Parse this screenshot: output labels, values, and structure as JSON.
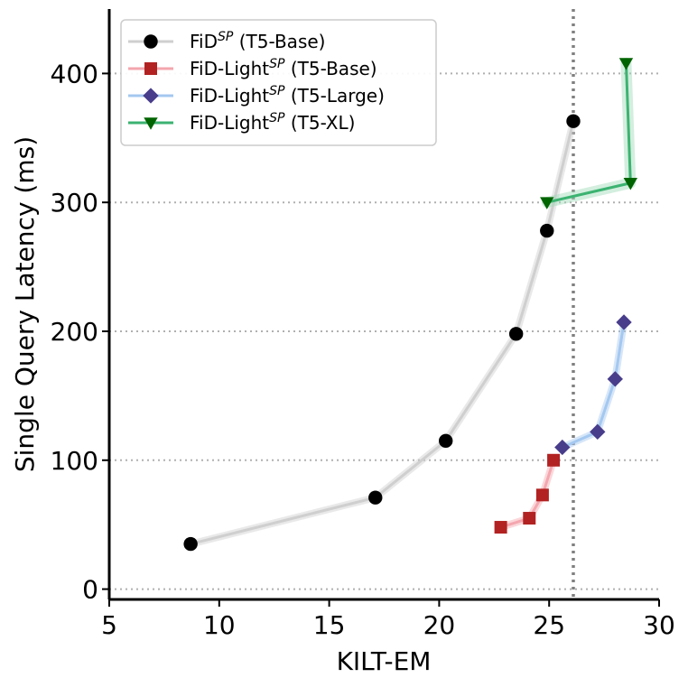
{
  "chart_data": {
    "type": "line",
    "xlabel": "KILT-EM",
    "ylabel": "Single Query Latency (ms)",
    "xlim": [
      5,
      30
    ],
    "ylim": [
      -8,
      450
    ],
    "x_ticks": [
      5,
      10,
      15,
      20,
      25,
      30
    ],
    "y_ticks": [
      0,
      100,
      200,
      300,
      400
    ],
    "x_tick_labels": [
      "5",
      "10",
      "15",
      "20",
      "25",
      "30"
    ],
    "y_tick_labels": [
      "0",
      "100",
      "200",
      "300",
      "400"
    ],
    "grid": "horizontal dotted",
    "reference_line": {
      "x": 26.1,
      "style": "dotted",
      "color": "#808080"
    },
    "legend_position": "top-left",
    "series": [
      {
        "name": "FiD",
        "superscript": "SP",
        "suffix": " (T5-Base)",
        "marker": "circle",
        "line_color": "#cfcfcf",
        "marker_color": "#000000",
        "band_color": "#cfcfcf",
        "x": [
          8.7,
          17.1,
          20.3,
          23.5,
          24.9,
          26.1
        ],
        "y": [
          35,
          71,
          115,
          198,
          278,
          363
        ]
      },
      {
        "name": "FiD-Light",
        "superscript": "SP",
        "suffix": " (T5-Base)",
        "marker": "square",
        "line_color": "#f4a6ae",
        "marker_color": "#b22222",
        "band_color": "#f4a6ae",
        "x": [
          22.8,
          24.1,
          24.7,
          25.2
        ],
        "y": [
          48,
          55,
          73,
          100
        ]
      },
      {
        "name": "FiD-Light",
        "superscript": "SP",
        "suffix": " (T5-Large)",
        "marker": "diamond",
        "line_color": "#a4c8f0",
        "marker_color": "#483d8b",
        "band_color": "#a4c8f0",
        "x": [
          25.6,
          27.2,
          28.0,
          28.4
        ],
        "y": [
          110,
          122,
          163,
          207
        ]
      },
      {
        "name": "FiD-Light",
        "superscript": "SP",
        "suffix": " (T5-XL)",
        "marker": "triangle-down",
        "line_color": "#3cb371",
        "marker_color": "#006400",
        "band_color": "#9ed9b5",
        "x": [
          24.9,
          28.7,
          28.5
        ],
        "y": [
          300,
          315,
          408
        ]
      }
    ]
  }
}
